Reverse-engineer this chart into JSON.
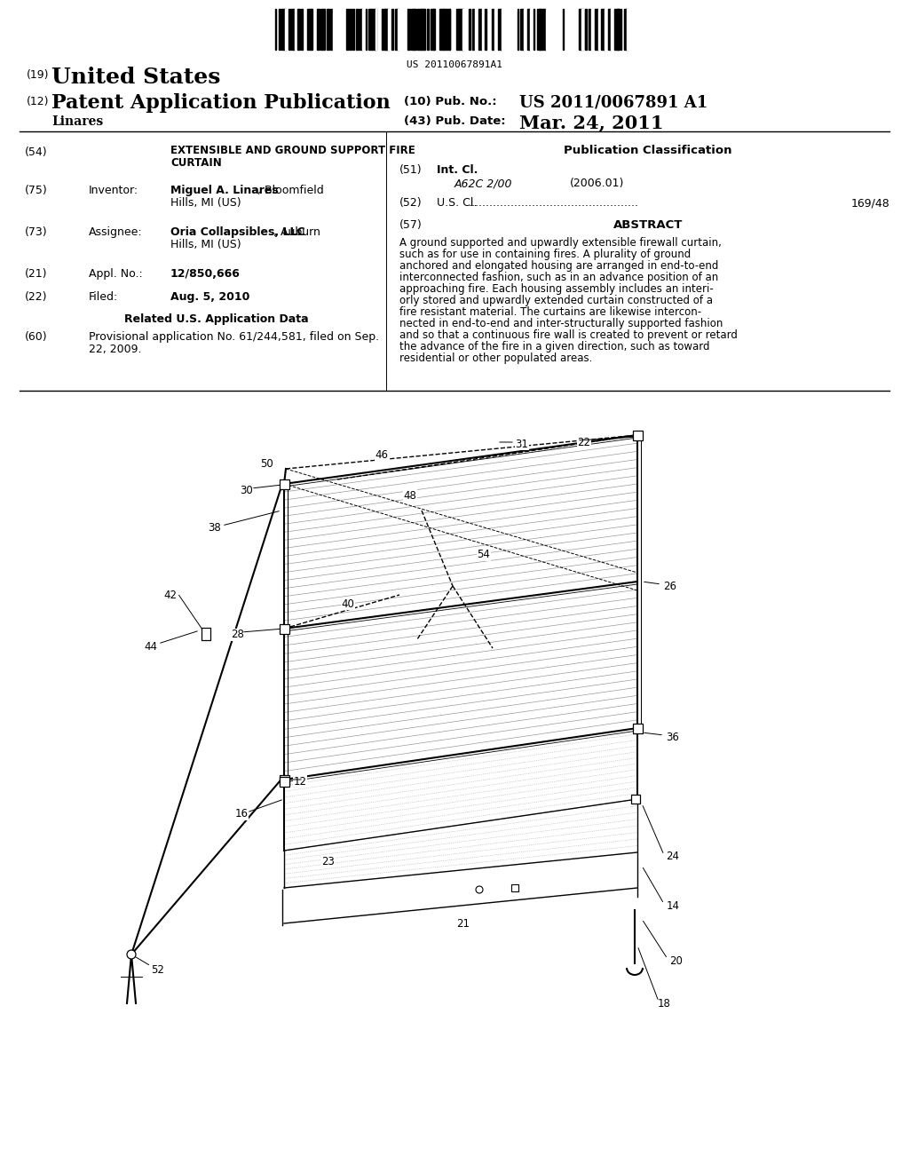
{
  "background_color": "#ffffff",
  "barcode_text": "US 20110067891A1",
  "header": {
    "country_label": "(19)",
    "country": "United States",
    "type_label": "(12)",
    "type": "Patent Application Publication",
    "inventor_surname": "Linares",
    "pub_no_label": "(10) Pub. No.:",
    "pub_no": "US 2011/0067891 A1",
    "pub_date_label": "(43) Pub. Date:",
    "pub_date": "Mar. 24, 2011"
  },
  "left_col": {
    "title_num": "(54)",
    "title_line1": "EXTENSIBLE AND GROUND SUPPORT FIRE",
    "title_line2": "CURTAIN",
    "inventor_num": "(75)",
    "inventor_label": "Inventor:",
    "inventor_bold": "Miguel A. Linares",
    "inventor_rest": ", Bloomfield",
    "inventor_line2": "Hills, MI (US)",
    "assignee_num": "(73)",
    "assignee_label": "Assignee:",
    "assignee_bold": "Oria Collapsibles, LLC",
    "assignee_rest": ", Auburn",
    "assignee_line2": "Hills, MI (US)",
    "appl_num": "(21)",
    "appl_label": "Appl. No.:",
    "appl_value": "12/850,666",
    "filed_num": "(22)",
    "filed_label": "Filed:",
    "filed_value": "Aug. 5, 2010",
    "related_title": "Related U.S. Application Data",
    "related_num": "(60)",
    "related_line1": "Provisional application No. 61/244,581, filed on Sep.",
    "related_line2": "22, 2009."
  },
  "right_col": {
    "pub_class_title": "Publication Classification",
    "intcl_num": "(51)",
    "intcl_label": "Int. Cl.",
    "intcl_code": "A62C 2/00",
    "intcl_year": "(2006.01)",
    "uscl_num": "(52)",
    "uscl_label": "U.S. Cl.",
    "uscl_value": "169/48",
    "abstract_num": "(57)",
    "abstract_title": "ABSTRACT",
    "abstract_lines": [
      "A ground supported and upwardly extensible firewall curtain,",
      "such as for use in containing fires. A plurality of ground",
      "anchored and elongated housing are arranged in end-to-end",
      "interconnected fashion, such as in an advance position of an",
      "approaching fire. Each housing assembly includes an interi-",
      "orly stored and upwardly extended curtain constructed of a",
      "fire resistant material. The curtains are likewise intercon-",
      "nected in end-to-end and inter-structurally supported fashion",
      "and so that a continuous fire wall is created to prevent or retard",
      "the advance of the fire in a given direction, such as toward",
      "residential or other populated areas."
    ]
  }
}
